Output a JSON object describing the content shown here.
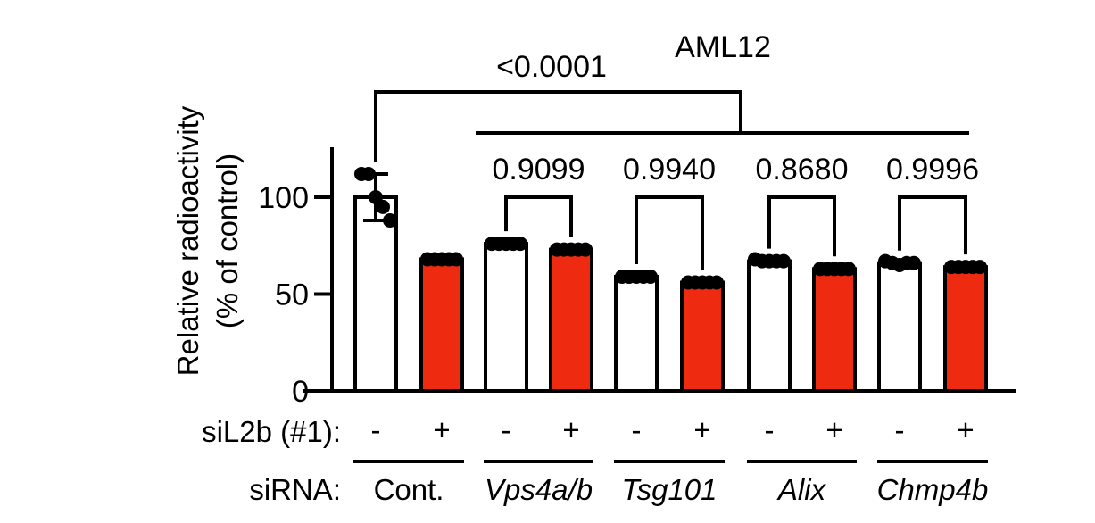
{
  "chart_data": {
    "type": "bar",
    "title": "AML12",
    "ylabel": [
      "Relative radioactivity",
      "(% of control)"
    ],
    "ylim": [
      0,
      125
    ],
    "yticks": [
      0,
      50,
      100
    ],
    "categories": [
      "-",
      "+",
      "-",
      "+",
      "-",
      "+",
      "-",
      "+",
      "-",
      "+"
    ],
    "row_labels": {
      "siL2b": "siL2b (#1):",
      "siRNA": "siRNA:"
    },
    "groups": [
      {
        "label": "Cont.",
        "italic": false
      },
      {
        "label": "Vps4a/b",
        "italic": true
      },
      {
        "label": "Tsg101",
        "italic": true
      },
      {
        "label": "Alix",
        "italic": true
      },
      {
        "label": "Chmp4b",
        "italic": true
      }
    ],
    "series": [
      {
        "values": [
          100,
          68,
          76,
          73,
          59,
          56,
          67,
          63,
          66,
          64
        ],
        "errors": [
          12,
          0,
          0,
          0,
          0,
          0,
          0,
          0,
          0,
          0
        ]
      }
    ],
    "points": [
      [
        112,
        112,
        100,
        95,
        88
      ],
      [
        68,
        68,
        68,
        68,
        68
      ],
      [
        76,
        76,
        76,
        76,
        76
      ],
      [
        73,
        73,
        73,
        73,
        73
      ],
      [
        59,
        59,
        59,
        59,
        59
      ],
      [
        56,
        56,
        56,
        56,
        56
      ],
      [
        68,
        67,
        67,
        67,
        67
      ],
      [
        63,
        63,
        63,
        63,
        63
      ],
      [
        67,
        66,
        65,
        66,
        66
      ],
      [
        64,
        64,
        64,
        64,
        64
      ]
    ],
    "bar_colors": [
      "#ffffff",
      "#ee2a10"
    ],
    "comparisons": [
      {
        "label": "<0.0001"
      },
      {
        "label": "0.9099"
      },
      {
        "label": "0.9940"
      },
      {
        "label": "0.8680"
      },
      {
        "label": "0.9996"
      }
    ],
    "grid": false,
    "legend": "none"
  }
}
